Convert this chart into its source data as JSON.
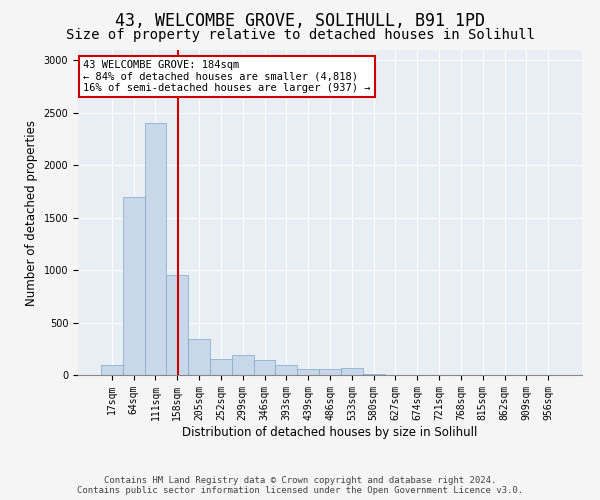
{
  "title": "43, WELCOMBE GROVE, SOLIHULL, B91 1PD",
  "subtitle": "Size of property relative to detached houses in Solihull",
  "xlabel": "Distribution of detached houses by size in Solihull",
  "ylabel": "Number of detached properties",
  "categories": [
    "17sqm",
    "64sqm",
    "111sqm",
    "158sqm",
    "205sqm",
    "252sqm",
    "299sqm",
    "346sqm",
    "393sqm",
    "439sqm",
    "486sqm",
    "533sqm",
    "580sqm",
    "627sqm",
    "674sqm",
    "721sqm",
    "768sqm",
    "815sqm",
    "862sqm",
    "909sqm",
    "956sqm"
  ],
  "values": [
    100,
    1700,
    2400,
    950,
    340,
    150,
    190,
    145,
    100,
    55,
    55,
    65,
    10,
    0,
    0,
    0,
    0,
    0,
    0,
    0,
    0
  ],
  "bar_color": "#c8d8ea",
  "bar_edge_color": "#7aaac8",
  "annotation_line1": "43 WELCOMBE GROVE: 184sqm",
  "annotation_line2": "← 84% of detached houses are smaller (4,818)",
  "annotation_line3": "16% of semi-detached houses are larger (937) →",
  "annotation_box_facecolor": "#ffffff",
  "annotation_border_color": "#cc0000",
  "red_line_color": "#cc0000",
  "ylim": [
    0,
    3100
  ],
  "yticks": [
    0,
    500,
    1000,
    1500,
    2000,
    2500,
    3000
  ],
  "fig_background_color": "#f5f5f5",
  "axes_background_color": "#e8eef4",
  "grid_color": "#ffffff",
  "title_fontsize": 12,
  "subtitle_fontsize": 10,
  "axis_label_fontsize": 8.5,
  "tick_fontsize": 7,
  "annotation_fontsize": 7.5,
  "footer_fontsize": 6.5,
  "footer_line1": "Contains HM Land Registry data © Crown copyright and database right 2024.",
  "footer_line2": "Contains public sector information licensed under the Open Government Licence v3.0."
}
